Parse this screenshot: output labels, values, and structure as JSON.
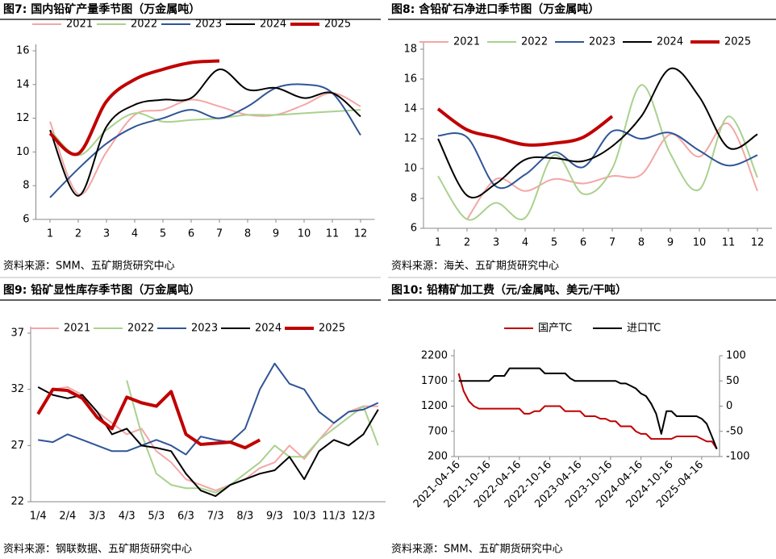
{
  "chart_data": [
    {
      "type": "line",
      "title": "图7: 国内铅矿产量季节图（万金属吨）",
      "source": "资料来源：SMM、五矿期货研究中心",
      "x": [
        1,
        2,
        3,
        4,
        5,
        6,
        7,
        8,
        9,
        10,
        11,
        12
      ],
      "xlim": [
        0.5,
        12.5
      ],
      "xticks": [
        1,
        2,
        3,
        4,
        5,
        6,
        7,
        8,
        9,
        10,
        11,
        12
      ],
      "ylim": [
        6,
        16
      ],
      "yticks": [
        6,
        8,
        10,
        12,
        14,
        16
      ],
      "series": [
        {
          "name": "2021",
          "color": "#f4a6a6",
          "values": [
            11.8,
            7.5,
            10,
            12.2,
            12.5,
            13.1,
            12.7,
            12.2,
            12.2,
            12.8,
            13.5,
            12.7
          ]
        },
        {
          "name": "2022",
          "color": "#a9d18e",
          "values": [
            11.3,
            9.8,
            11.3,
            12.3,
            11.8,
            11.9,
            12.0,
            12.2,
            12.2,
            12.3,
            12.4,
            12.5
          ]
        },
        {
          "name": "2023",
          "color": "#2f5597",
          "values": [
            7.3,
            9.0,
            10.5,
            11.5,
            12.0,
            12.5,
            12.0,
            12.7,
            13.8,
            14.0,
            13.5,
            11.0
          ]
        },
        {
          "name": "2024",
          "color": "#000000",
          "values": [
            11.3,
            7.4,
            11.5,
            12.8,
            13.1,
            13.2,
            14.9,
            13.7,
            13.8,
            13.2,
            13.5,
            12.1
          ]
        },
        {
          "name": "2025",
          "color": "#c00000",
          "values": [
            11.1,
            9.9,
            13.0,
            14.3,
            14.9,
            15.3,
            15.4,
            null,
            null,
            null,
            null,
            null
          ]
        }
      ]
    },
    {
      "type": "line",
      "title": "图8: 含铅矿石净进口季节图（万金属吨）",
      "source": "资料来源：海关、五矿期货研究中心",
      "x": [
        1,
        2,
        3,
        4,
        5,
        6,
        7,
        8,
        9,
        10,
        11,
        12
      ],
      "xlim": [
        0.5,
        12.5
      ],
      "xticks": [
        1,
        2,
        3,
        4,
        5,
        6,
        7,
        8,
        9,
        10,
        11,
        12
      ],
      "ylim": [
        6,
        18
      ],
      "yticks": [
        6,
        8,
        10,
        12,
        14,
        16,
        18
      ],
      "series": [
        {
          "name": "2021",
          "color": "#f4a6a6",
          "values": [
            null,
            6.6,
            9.3,
            8.5,
            9.3,
            9.0,
            9.5,
            9.6,
            12.3,
            10.8,
            13.0,
            8.5
          ]
        },
        {
          "name": "2022",
          "color": "#a9d18e",
          "values": [
            9.5,
            6.6,
            7.7,
            6.7,
            10.9,
            8.3,
            10.0,
            15.6,
            11.0,
            8.6,
            13.5,
            9.4
          ]
        },
        {
          "name": "2023",
          "color": "#2f5597",
          "values": [
            12.2,
            12.1,
            8.8,
            9.6,
            11.1,
            10.1,
            12.5,
            12.0,
            12.4,
            11.2,
            10.2,
            10.9
          ]
        },
        {
          "name": "2024",
          "color": "#000000",
          "values": [
            12.0,
            8.2,
            9.0,
            10.6,
            10.7,
            10.5,
            11.5,
            13.5,
            16.7,
            14.8,
            11.4,
            12.3
          ]
        },
        {
          "name": "2025",
          "color": "#c00000",
          "values": [
            14.0,
            12.6,
            12.1,
            11.6,
            11.7,
            12.1,
            13.5,
            null,
            null,
            null,
            null,
            null
          ]
        }
      ]
    },
    {
      "type": "line",
      "title": "图9: 铅矿显性库存季节图（万金属吨）",
      "source": "资料来源：钢联数据、五矿期货研究中心",
      "categories": [
        "1/4",
        null,
        "2/4",
        null,
        "3/3",
        null,
        "4/3",
        null,
        "5/3",
        null,
        "6/3",
        null,
        "7/3",
        null,
        "8/3",
        null,
        "9/3",
        null,
        "10/3",
        null,
        "11/3",
        null,
        "12/3",
        null
      ],
      "ylim": [
        22,
        37
      ],
      "yticks": [
        22,
        27,
        32,
        37
      ],
      "series": [
        {
          "name": "2021",
          "color": "#f4a6a6",
          "values": [
            30,
            32,
            32.2,
            31.5,
            30,
            29,
            28,
            28.5,
            26.5,
            25.5,
            24,
            23.5,
            23,
            23.5,
            24,
            25,
            25.5,
            27,
            25.8,
            27.5,
            29,
            30,
            30.5,
            30.5
          ]
        },
        {
          "name": "2022",
          "color": "#a9d18e",
          "values": [
            null,
            null,
            null,
            null,
            null,
            null,
            32.8,
            28.0,
            24.5,
            23.5,
            23.2,
            23.2,
            22.8,
            23.5,
            24.5,
            25.5,
            27,
            26,
            26,
            27.5,
            28.5,
            29.5,
            30.5,
            27
          ]
        },
        {
          "name": "2023",
          "color": "#2f5597",
          "values": [
            27.5,
            27.3,
            28.0,
            27.5,
            27.0,
            26.5,
            26.5,
            27.0,
            27.5,
            27.0,
            26.2,
            27.8,
            27.5,
            27.3,
            28.5,
            32.0,
            34.3,
            32.5,
            32.0,
            30.0,
            29.0,
            30.0,
            30.2,
            30.8
          ]
        },
        {
          "name": "2024",
          "color": "#000000",
          "values": [
            32.2,
            31.5,
            31.2,
            31.5,
            30.0,
            28.0,
            28.5,
            27.0,
            26.8,
            26.5,
            24.5,
            23.0,
            22.5,
            23.5,
            24.0,
            24.5,
            24.8,
            26.0,
            24.0,
            26.5,
            27.5,
            27.0,
            28.0,
            30.2
          ]
        },
        {
          "name": "2025",
          "color": "#c00000",
          "values": [
            29.8,
            32.0,
            31.9,
            31.2,
            29.5,
            28.5,
            31.3,
            30.8,
            30.5,
            31.8,
            28.0,
            27.1,
            27.2,
            27.3,
            26.8,
            27.5,
            null,
            null,
            null,
            null,
            null,
            null,
            null,
            null
          ]
        }
      ]
    },
    {
      "type": "line",
      "title": "图10: 铅精矿加工费（元/金属吨、美元/干吨）",
      "source": "资料来源：SMM、五矿期货研究中心",
      "x": [
        "2021-04-16",
        "2021-05-16",
        "2021-06-16",
        "2021-07-16",
        "2021-08-16",
        "2021-09-16",
        "2021-10-16",
        "2021-11-16",
        "2021-12-16",
        "2022-01-16",
        "2022-02-16",
        "2022-03-16",
        "2022-04-16",
        "2022-05-16",
        "2022-06-16",
        "2022-07-16",
        "2022-08-16",
        "2022-09-16",
        "2022-10-16",
        "2022-11-16",
        "2022-12-16",
        "2023-01-16",
        "2023-02-16",
        "2023-03-16",
        "2023-04-16",
        "2023-05-16",
        "2023-06-16",
        "2023-07-16",
        "2023-08-16",
        "2023-09-16",
        "2023-10-16",
        "2023-11-16",
        "2023-12-16",
        "2024-01-16",
        "2024-02-16",
        "2024-03-16",
        "2024-04-16",
        "2024-05-16",
        "2024-06-16",
        "2024-07-16",
        "2024-08-16",
        "2024-09-16",
        "2024-10-16",
        "2024-11-16",
        "2024-12-16",
        "2025-01-16",
        "2025-02-16",
        "2025-03-16",
        "2025-04-16",
        "2025-05-16",
        "2025-06-16",
        "2025-07-16"
      ],
      "xlim": [
        "2021-03-20",
        "2025-08-01"
      ],
      "xticks": [
        "2021-04-16",
        "2021-10-16",
        "2022-04-16",
        "2022-10-16",
        "2023-04-16",
        "2023-10-16",
        "2024-04-16",
        "2024-10-16",
        "2025-04-16"
      ],
      "ylim": [
        200,
        2200
      ],
      "yticks": [
        200,
        700,
        1200,
        1700,
        2200
      ],
      "y2lim": [
        -100,
        100
      ],
      "y2ticks": [
        -100,
        -50,
        0,
        50,
        100
      ],
      "series": [
        {
          "name": "国产TC",
          "color": "#c00000",
          "values": [
            1850,
            1500,
            1300,
            1200,
            1150,
            1150,
            1150,
            1150,
            1150,
            1150,
            1150,
            1150,
            1150,
            1050,
            1050,
            1100,
            1100,
            1200,
            1200,
            1200,
            1200,
            1100,
            1100,
            1100,
            1100,
            1000,
            1000,
            1000,
            950,
            950,
            900,
            900,
            800,
            800,
            800,
            700,
            650,
            650,
            550,
            550,
            550,
            550,
            550,
            600,
            600,
            600,
            600,
            600,
            550,
            500,
            500,
            350
          ]
        },
        {
          "name": "进口TC",
          "color": "#000000",
          "axis": "y2",
          "values": [
            50,
            50,
            50,
            50,
            50,
            50,
            50,
            60,
            60,
            60,
            75,
            75,
            75,
            75,
            75,
            75,
            75,
            65,
            65,
            65,
            65,
            65,
            55,
            50,
            50,
            50,
            50,
            50,
            50,
            50,
            50,
            50,
            45,
            45,
            40,
            35,
            25,
            20,
            5,
            -15,
            -55,
            -10,
            -10,
            -20,
            -20,
            -20,
            -20,
            -20,
            -25,
            -35,
            -60,
            -85
          ]
        }
      ]
    }
  ]
}
